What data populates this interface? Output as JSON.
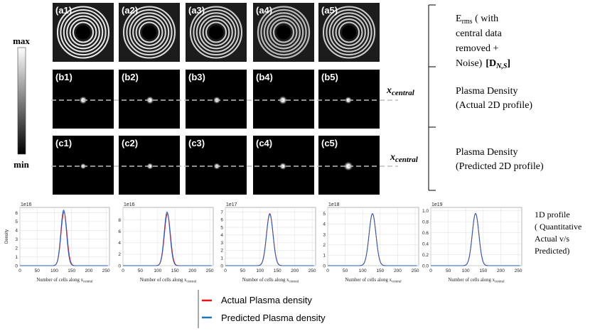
{
  "colorbar": {
    "max_label": "max",
    "min_label": "min"
  },
  "rows": [
    {
      "panels": [
        "(a1)",
        "(a2)",
        "(a3)",
        "(a4)",
        "(a5)"
      ]
    },
    {
      "panels": [
        "(b1)",
        "(b2)",
        "(b3)",
        "(b4)",
        "(b5)"
      ]
    },
    {
      "panels": [
        "(c1)",
        "(c2)",
        "(c3)",
        "(c4)",
        "(c5)"
      ]
    }
  ],
  "center_line_label": {
    "base": "x",
    "sub": "central"
  },
  "bracket_labels": {
    "row_a": {
      "line1": "E",
      "line1_sub": "rms",
      "line1_rest": " ( with",
      "line2": "central data",
      "line3": "removed +",
      "line4": "Noise)",
      "tag_base": "[D",
      "tag_sub": "N,S",
      "tag_close": "]"
    },
    "row_b": {
      "line1": "Plasma  Density",
      "line2": "(Actual 2D profile)"
    },
    "row_c": {
      "line1": "Plasma  Density",
      "line2": "(Predicted 2D profile)"
    }
  },
  "profile_label": {
    "line1": "1D profile",
    "line2": "( Quantitative",
    "line3": "Actual v/s",
    "line4": "Predicted)"
  },
  "legend": {
    "entries": [
      {
        "label": "Actual Plasma density",
        "color": "#e8141c"
      },
      {
        "label": "Predicted  Plasma density",
        "color": "#1f77b4"
      }
    ]
  },
  "chart_data": [
    {
      "type": "line",
      "scale_label": "1e16",
      "ylabel": "Density",
      "xlabel": "Number of cells along x",
      "xlabel_sub": "central",
      "xlim": [
        0,
        260
      ],
      "ylim": [
        0,
        6.6
      ],
      "xticks": [
        0,
        50,
        100,
        150,
        200,
        250
      ],
      "yticks": [
        0,
        1,
        2,
        3,
        4,
        5,
        6
      ],
      "grid": true,
      "series": [
        {
          "name": "Actual",
          "color": "#e8141c",
          "center": 128,
          "sigma": 8.5,
          "peak": 6.1
        },
        {
          "name": "Predicted",
          "color": "#1f5fbf",
          "center": 127,
          "sigma": 8.2,
          "peak": 6.3
        }
      ]
    },
    {
      "type": "line",
      "scale_label": "1e16",
      "ylabel": "",
      "xlabel": "Number of cells along x",
      "xlabel_sub": "central",
      "xlim": [
        0,
        260
      ],
      "ylim": [
        0,
        10.2
      ],
      "xticks": [
        0,
        50,
        100,
        150,
        200,
        250
      ],
      "yticks": [
        0,
        2,
        4,
        6,
        8
      ],
      "grid": true,
      "series": [
        {
          "name": "Actual",
          "color": "#e8141c",
          "center": 128,
          "sigma": 8.6,
          "peak": 9.1
        },
        {
          "name": "Predicted",
          "color": "#1f5fbf",
          "center": 127,
          "sigma": 8.4,
          "peak": 9.4
        }
      ]
    },
    {
      "type": "line",
      "scale_label": "1e17",
      "ylabel": "",
      "xlabel": "Number of cells along x",
      "xlabel_sub": "central",
      "xlim": [
        0,
        260
      ],
      "ylim": [
        0,
        7.6
      ],
      "xticks": [
        0,
        50,
        100,
        150,
        200,
        250
      ],
      "yticks": [
        0,
        1,
        2,
        3,
        4,
        5,
        6,
        7
      ],
      "grid": true,
      "series": [
        {
          "name": "Actual",
          "color": "#e8141c",
          "center": 128,
          "sigma": 9.5,
          "peak": 6.8
        },
        {
          "name": "Predicted",
          "color": "#1f5fbf",
          "center": 128,
          "sigma": 9.3,
          "peak": 6.7
        }
      ]
    },
    {
      "type": "line",
      "scale_label": "1e18",
      "ylabel": "",
      "xlabel": "Number of cells along x",
      "xlabel_sub": "central",
      "xlim": [
        0,
        260
      ],
      "ylim": [
        0,
        5.6
      ],
      "xticks": [
        0,
        50,
        100,
        150,
        200,
        250
      ],
      "yticks": [
        0,
        1,
        2,
        3,
        4,
        5
      ],
      "grid": true,
      "series": [
        {
          "name": "Actual",
          "color": "#e8141c",
          "center": 128,
          "sigma": 9.8,
          "peak": 5.0
        },
        {
          "name": "Predicted",
          "color": "#1f5fbf",
          "center": 128,
          "sigma": 9.8,
          "peak": 5.0
        }
      ]
    },
    {
      "type": "line",
      "scale_label": "1e19",
      "ylabel": "",
      "xlabel": "Number of cells along x",
      "xlabel_sub": "central",
      "xlim": [
        0,
        260
      ],
      "ylim": [
        0,
        1.06
      ],
      "xticks": [
        0,
        50,
        100,
        150,
        200,
        250
      ],
      "yticks": [
        0.0,
        0.2,
        0.4,
        0.6,
        0.8,
        1.0
      ],
      "grid": true,
      "series": [
        {
          "name": "Actual",
          "color": "#e8141c",
          "center": 128,
          "sigma": 9.5,
          "peak": 0.95
        },
        {
          "name": "Predicted",
          "color": "#1f5fbf",
          "center": 128,
          "sigma": 9.5,
          "peak": 0.95
        }
      ]
    }
  ]
}
